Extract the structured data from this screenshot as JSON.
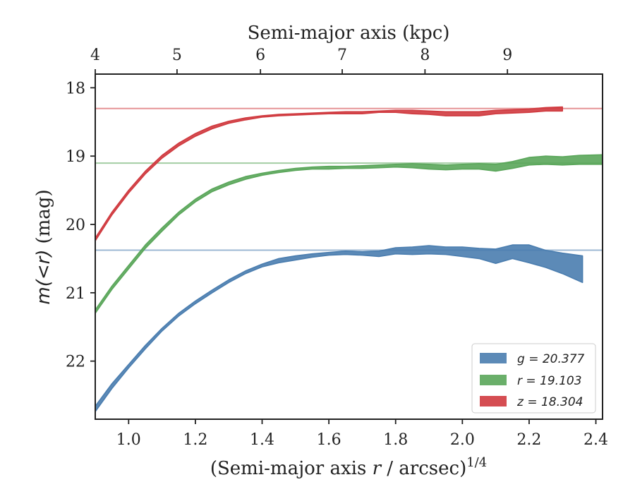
{
  "chart_data": {
    "type": "area",
    "xlabel": "(Semi-major axis r / arcsec)^1/4",
    "xlabel_parts": {
      "prefix": "(Semi-major axis ",
      "var": "r",
      "suffix": " / arcsec)",
      "exp": "1/4"
    },
    "ylabel": "m(<r) (mag)",
    "ylabel_parts": {
      "math": "m(<r)",
      "unit": "(mag)"
    },
    "top_xlabel": "Semi-major axis (kpc)",
    "xlim": [
      0.9,
      2.42
    ],
    "ylim": [
      22.85,
      17.8
    ],
    "y_inverted": true,
    "x_ticks": [
      "1.0",
      "1.2",
      "1.4",
      "1.6",
      "1.8",
      "2.0",
      "2.2",
      "2.4"
    ],
    "y_ticks": [
      "18",
      "19",
      "20",
      "21",
      "22"
    ],
    "top_ticks": [
      "4",
      "5",
      "6",
      "7",
      "8",
      "9"
    ],
    "top_tick_positions": [
      0.9,
      1.145,
      1.395,
      1.64,
      1.888,
      2.135
    ],
    "grid": false,
    "legend": {
      "placement": "lower-right",
      "entries": [
        {
          "label": "g = 20.377",
          "color": "#4a7daf"
        },
        {
          "label": "r = 19.103",
          "color": "#5aa65a"
        },
        {
          "label": "z = 18.304",
          "color": "#d03a3f"
        }
      ]
    },
    "series": [
      {
        "name": "g = 20.377",
        "color": "#4a7daf",
        "asymptote": 20.377,
        "upper": [
          [
            0.9,
            22.66
          ],
          [
            0.95,
            22.33
          ],
          [
            1.0,
            22.05
          ],
          [
            1.05,
            21.77
          ],
          [
            1.1,
            21.52
          ],
          [
            1.15,
            21.3
          ],
          [
            1.2,
            21.12
          ],
          [
            1.25,
            20.96
          ],
          [
            1.3,
            20.81
          ],
          [
            1.35,
            20.68
          ],
          [
            1.4,
            20.58
          ],
          [
            1.45,
            20.5
          ],
          [
            1.5,
            20.46
          ],
          [
            1.55,
            20.43
          ],
          [
            1.6,
            20.41
          ],
          [
            1.65,
            20.39
          ],
          [
            1.7,
            20.4
          ],
          [
            1.75,
            20.39
          ],
          [
            1.8,
            20.34
          ],
          [
            1.85,
            20.33
          ],
          [
            1.9,
            20.31
          ],
          [
            1.95,
            20.33
          ],
          [
            2.0,
            20.33
          ],
          [
            2.05,
            20.35
          ],
          [
            2.1,
            20.36
          ],
          [
            2.15,
            20.3
          ],
          [
            2.2,
            20.3
          ],
          [
            2.25,
            20.38
          ],
          [
            2.3,
            20.42
          ],
          [
            2.36,
            20.46
          ]
        ],
        "lower": [
          [
            0.9,
            22.74
          ],
          [
            0.95,
            22.4
          ],
          [
            1.0,
            22.1
          ],
          [
            1.05,
            21.82
          ],
          [
            1.1,
            21.56
          ],
          [
            1.15,
            21.34
          ],
          [
            1.2,
            21.16
          ],
          [
            1.25,
            21.0
          ],
          [
            1.3,
            20.85
          ],
          [
            1.35,
            20.72
          ],
          [
            1.4,
            20.62
          ],
          [
            1.45,
            20.56
          ],
          [
            1.5,
            20.52
          ],
          [
            1.55,
            20.48
          ],
          [
            1.6,
            20.45
          ],
          [
            1.65,
            20.44
          ],
          [
            1.7,
            20.45
          ],
          [
            1.75,
            20.47
          ],
          [
            1.8,
            20.43
          ],
          [
            1.85,
            20.44
          ],
          [
            1.9,
            20.43
          ],
          [
            1.95,
            20.44
          ],
          [
            2.0,
            20.47
          ],
          [
            2.05,
            20.5
          ],
          [
            2.1,
            20.57
          ],
          [
            2.15,
            20.5
          ],
          [
            2.2,
            20.56
          ],
          [
            2.25,
            20.63
          ],
          [
            2.3,
            20.72
          ],
          [
            2.36,
            20.85
          ]
        ]
      },
      {
        "name": "r = 19.103",
        "color": "#5aa65a",
        "asymptote": 19.103,
        "upper": [
          [
            0.9,
            21.25
          ],
          [
            0.95,
            20.9
          ],
          [
            1.0,
            20.6
          ],
          [
            1.05,
            20.3
          ],
          [
            1.1,
            20.05
          ],
          [
            1.15,
            19.82
          ],
          [
            1.2,
            19.63
          ],
          [
            1.25,
            19.48
          ],
          [
            1.3,
            19.38
          ],
          [
            1.35,
            19.3
          ],
          [
            1.4,
            19.25
          ],
          [
            1.45,
            19.21
          ],
          [
            1.5,
            19.18
          ],
          [
            1.55,
            19.16
          ],
          [
            1.6,
            19.15
          ],
          [
            1.65,
            19.15
          ],
          [
            1.7,
            19.14
          ],
          [
            1.75,
            19.13
          ],
          [
            1.8,
            19.12
          ],
          [
            1.85,
            19.11
          ],
          [
            1.9,
            19.12
          ],
          [
            1.95,
            19.13
          ],
          [
            2.0,
            19.12
          ],
          [
            2.05,
            19.11
          ],
          [
            2.1,
            19.12
          ],
          [
            2.15,
            19.08
          ],
          [
            2.2,
            19.02
          ],
          [
            2.25,
            19.0
          ],
          [
            2.3,
            19.01
          ],
          [
            2.35,
            18.99
          ],
          [
            2.42,
            18.98
          ]
        ],
        "lower": [
          [
            0.9,
            21.3
          ],
          [
            0.95,
            20.95
          ],
          [
            1.0,
            20.65
          ],
          [
            1.05,
            20.35
          ],
          [
            1.1,
            20.1
          ],
          [
            1.15,
            19.86
          ],
          [
            1.2,
            19.67
          ],
          [
            1.25,
            19.52
          ],
          [
            1.3,
            19.42
          ],
          [
            1.35,
            19.34
          ],
          [
            1.4,
            19.28
          ],
          [
            1.45,
            19.24
          ],
          [
            1.5,
            19.21
          ],
          [
            1.55,
            19.19
          ],
          [
            1.6,
            19.19
          ],
          [
            1.65,
            19.18
          ],
          [
            1.7,
            19.18
          ],
          [
            1.75,
            19.17
          ],
          [
            1.8,
            19.16
          ],
          [
            1.85,
            19.17
          ],
          [
            1.9,
            19.19
          ],
          [
            1.95,
            19.2
          ],
          [
            2.0,
            19.19
          ],
          [
            2.05,
            19.19
          ],
          [
            2.1,
            19.22
          ],
          [
            2.15,
            19.18
          ],
          [
            2.2,
            19.13
          ],
          [
            2.25,
            19.12
          ],
          [
            2.3,
            19.13
          ],
          [
            2.35,
            19.12
          ],
          [
            2.42,
            19.12
          ]
        ]
      },
      {
        "name": "z = 18.304",
        "color": "#d03a3f",
        "asymptote": 18.304,
        "upper": [
          [
            0.9,
            20.2
          ],
          [
            0.95,
            19.82
          ],
          [
            1.0,
            19.5
          ],
          [
            1.05,
            19.22
          ],
          [
            1.1,
            18.99
          ],
          [
            1.15,
            18.81
          ],
          [
            1.2,
            18.67
          ],
          [
            1.25,
            18.56
          ],
          [
            1.3,
            18.49
          ],
          [
            1.35,
            18.44
          ],
          [
            1.4,
            18.41
          ],
          [
            1.45,
            18.39
          ],
          [
            1.5,
            18.38
          ],
          [
            1.55,
            18.37
          ],
          [
            1.6,
            18.36
          ],
          [
            1.65,
            18.35
          ],
          [
            1.7,
            18.35
          ],
          [
            1.75,
            18.34
          ],
          [
            1.8,
            18.33
          ],
          [
            1.85,
            18.33
          ],
          [
            1.9,
            18.34
          ],
          [
            1.95,
            18.35
          ],
          [
            2.0,
            18.35
          ],
          [
            2.05,
            18.35
          ],
          [
            2.1,
            18.33
          ],
          [
            2.15,
            18.32
          ],
          [
            2.2,
            18.31
          ],
          [
            2.25,
            18.29
          ],
          [
            2.3,
            18.28
          ]
        ],
        "lower": [
          [
            0.9,
            20.24
          ],
          [
            0.95,
            19.86
          ],
          [
            1.0,
            19.54
          ],
          [
            1.05,
            19.26
          ],
          [
            1.1,
            19.03
          ],
          [
            1.15,
            18.85
          ],
          [
            1.2,
            18.71
          ],
          [
            1.25,
            18.6
          ],
          [
            1.3,
            18.52
          ],
          [
            1.35,
            18.47
          ],
          [
            1.4,
            18.43
          ],
          [
            1.45,
            18.41
          ],
          [
            1.5,
            18.4
          ],
          [
            1.55,
            18.39
          ],
          [
            1.6,
            18.38
          ],
          [
            1.65,
            18.38
          ],
          [
            1.7,
            18.38
          ],
          [
            1.75,
            18.36
          ],
          [
            1.8,
            18.36
          ],
          [
            1.85,
            18.38
          ],
          [
            1.9,
            18.39
          ],
          [
            1.95,
            18.41
          ],
          [
            2.0,
            18.41
          ],
          [
            2.05,
            18.41
          ],
          [
            2.1,
            18.38
          ],
          [
            2.15,
            18.37
          ],
          [
            2.2,
            18.36
          ],
          [
            2.25,
            18.34
          ],
          [
            2.3,
            18.34
          ]
        ]
      }
    ]
  }
}
